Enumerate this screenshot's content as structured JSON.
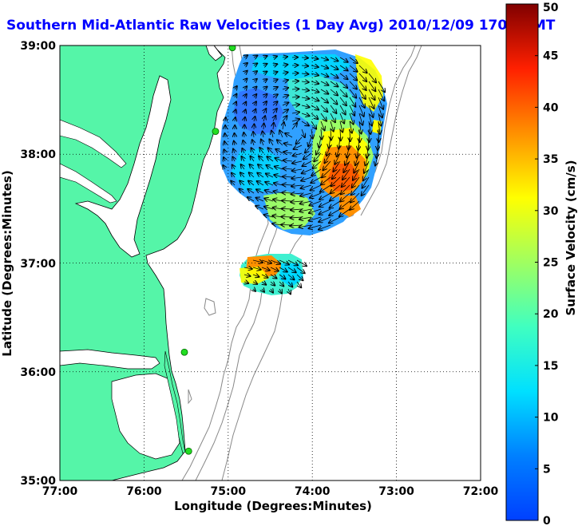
{
  "title": "Southern Mid-Atlantic Raw Velocities (1 Day Avg) 2010/12/09 1700 GMT",
  "map": {
    "xlabel": "Longitude (Degrees:Minutes)",
    "ylabel": "Latitude (Degrees:Minutes)",
    "lon_ticks": [
      "77:00",
      "76:00",
      "75:00",
      "74:00",
      "73:00",
      "72:00"
    ],
    "lat_ticks": [
      "35:00",
      "36:00",
      "37:00",
      "38:00",
      "39:00"
    ],
    "lon_range": [
      -77,
      -72
    ],
    "lat_range": [
      35,
      39
    ],
    "grid": "dotted"
  },
  "colorbar": {
    "label": "Surface Velocity (cm/s)",
    "ticks": [
      "0",
      "5",
      "10",
      "15",
      "20",
      "25",
      "30",
      "35",
      "40",
      "45",
      "50"
    ],
    "range": [
      0,
      50
    ],
    "colormap": "jet"
  },
  "colors": {
    "land": "#55f5a8",
    "ocean": "#ffffff",
    "title": "#0000ff",
    "station": "#22dd22",
    "bathymetry": "#888888"
  },
  "stations": [
    {
      "lon": -74.95,
      "lat": 38.98
    },
    {
      "lon": -75.15,
      "lat": 38.21
    },
    {
      "lon": -75.52,
      "lat": 36.18
    },
    {
      "lon": -75.47,
      "lat": 35.27
    }
  ]
}
